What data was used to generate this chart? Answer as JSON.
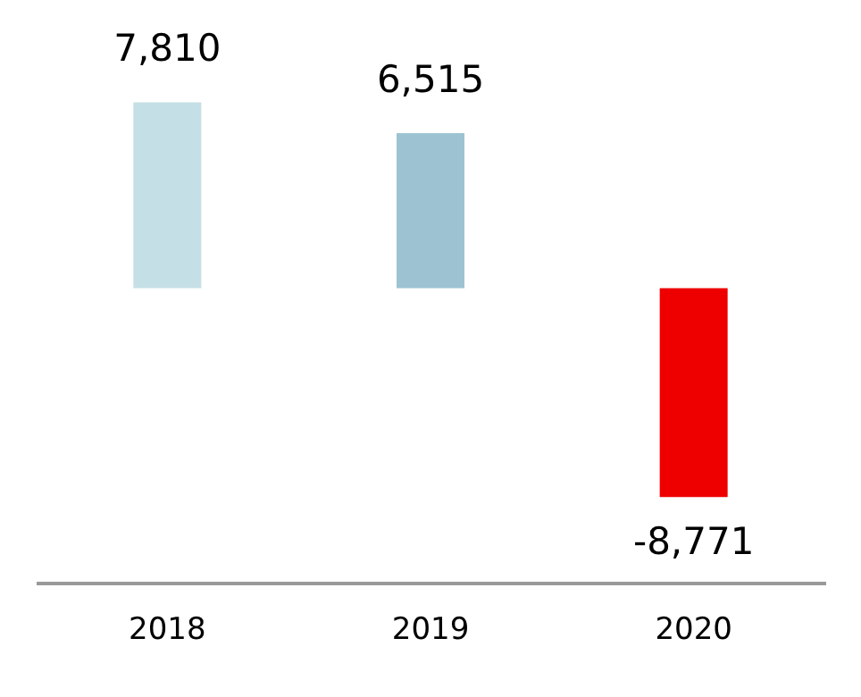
{
  "chart_data": {
    "type": "bar",
    "categories": [
      "2018",
      "2019",
      "2020"
    ],
    "values": [
      7810,
      6515,
      -8771
    ],
    "value_labels": [
      "7,810",
      "6,515",
      "-8,771"
    ],
    "colors": [
      "#c5dfe6",
      "#9dc3d3",
      "#ee0000"
    ],
    "grid": false,
    "tick_labels": "x"
  }
}
